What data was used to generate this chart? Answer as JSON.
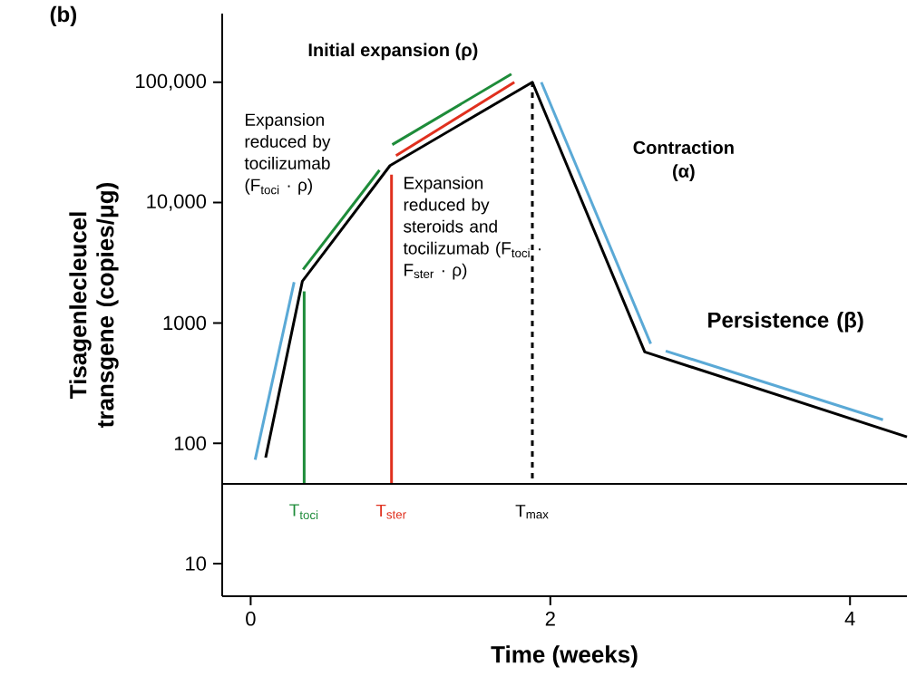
{
  "chart_data": {
    "type": "line",
    "xlabel": "Time (weeks)",
    "ylabel": "Tisagenlecleucel transgene (copies/μg)",
    "log": "y",
    "grid": false,
    "legend": false,
    "marker": "none",
    "xlim": [
      -0.19,
      4.38
    ],
    "ylim": [
      5.36,
      372000
    ],
    "xticks": [
      0,
      2,
      4
    ],
    "yticks": [
      10,
      100,
      1000,
      {
        "value": 10000,
        "label": "10,000"
      },
      {
        "value": 100000,
        "label": "100,000"
      }
    ],
    "series": [
      {
        "color": "#000000",
        "x": [
          0.1,
          0.345,
          0.93,
          1.88,
          2.63,
          4.38
        ],
        "values": [
          76,
          2220,
          20300,
          100000,
          575,
          113
        ]
      },
      {
        "color": "#5aa9d6",
        "x": [
          0.03,
          0.29
        ],
        "values": [
          73,
          2180
        ]
      },
      {
        "color": "#5aa9d6",
        "x": [
          1.94,
          2.67
        ],
        "values": [
          100000,
          672
        ]
      },
      {
        "color": "#5aa9d6",
        "x": [
          2.77,
          4.22
        ],
        "values": [
          585,
          157
        ]
      },
      {
        "color": "#1e8c3a",
        "x": [
          0.35,
          0.86
        ],
        "values": [
          2780,
          18600
        ]
      },
      {
        "color": "#1e8c3a",
        "x": [
          0.945,
          1.74
        ],
        "values": [
          30300,
          116900
        ]
      },
      {
        "color": "#e0301e",
        "x": [
          0.97,
          1.76
        ],
        "values": [
          24600,
          100000
        ]
      },
      {
        "color": "#1e8c3a",
        "x": [
          0.357,
          0.357
        ],
        "values": [
          46,
          1830
        ]
      },
      {
        "color": "#e0301e",
        "x": [
          0.94,
          0.94
        ],
        "values": [
          46,
          17100
        ]
      },
      {
        "color": "#000000",
        "line_style": "dotted",
        "x": [
          1.88,
          1.88
        ],
        "values": [
          46,
          100000
        ]
      }
    ],
    "ref_lines": [
      {
        "axis": "y",
        "value": 46,
        "color": "#000000"
      }
    ],
    "annotations": [
      "(b)",
      "Initial expansion (ρ)",
      "Expansion reduced by tocilizumab (F$_{toci}$ · ρ)",
      "Expansion reduced by steroids and tocilizumab (F$_{toci}$ · F$_{ster}$ · ρ)",
      "Contraction (α)",
      "Persistence (β)",
      "T$_{toci}$",
      "T$_{ster}$",
      "T$_{max}$"
    ]
  }
}
